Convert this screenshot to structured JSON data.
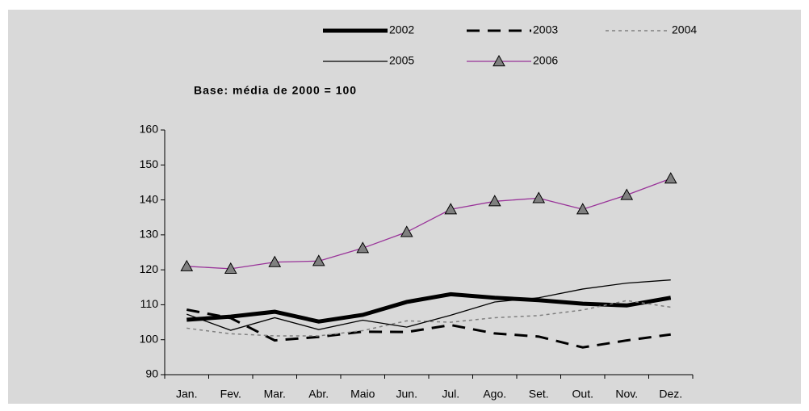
{
  "chart_data": {
    "type": "line",
    "subtitle": "Base: média de 2000 = 100",
    "categories": [
      "Jan.",
      "Fev.",
      "Mar.",
      "Abr.",
      "Maio",
      "Jun.",
      "Jul.",
      "Ago.",
      "Set.",
      "Out.",
      "Nov.",
      "Dez."
    ],
    "ylim": [
      90,
      160
    ],
    "yticks": [
      90,
      100,
      110,
      120,
      130,
      140,
      150,
      160
    ],
    "grid": false,
    "legend": "top",
    "series": [
      {
        "name": "2002",
        "color": "#000000",
        "style": "thick",
        "values": [
          105.7,
          106.6,
          108,
          105.2,
          107.1,
          110.8,
          113,
          112,
          111.3,
          110.3,
          109.8,
          112
        ]
      },
      {
        "name": "2003",
        "color": "#000000",
        "style": "dashed",
        "values": [
          108.6,
          106.2,
          99.8,
          100.8,
          102.3,
          102.2,
          104.2,
          101.8,
          100.9,
          97.8,
          99.8,
          101.5
        ]
      },
      {
        "name": "2004",
        "color": "#808080",
        "style": "dotted",
        "values": [
          103.3,
          101.7,
          101.1,
          101.1,
          102.6,
          105.4,
          105,
          106.3,
          106.9,
          108.5,
          111.2,
          109.3
        ]
      },
      {
        "name": "2005",
        "color": "#000000",
        "style": "solid",
        "values": [
          107.3,
          102.7,
          106.3,
          102.9,
          105.6,
          103.6,
          107,
          110.8,
          112,
          114.5,
          116.2,
          117.1
        ]
      },
      {
        "name": "2006",
        "color": "#993399",
        "style": "solid",
        "marker": "triangle",
        "values": [
          121,
          120.3,
          122.2,
          122.5,
          126.2,
          130.8,
          137.3,
          139.6,
          140.5,
          137.3,
          141.4,
          146.1
        ]
      }
    ]
  }
}
